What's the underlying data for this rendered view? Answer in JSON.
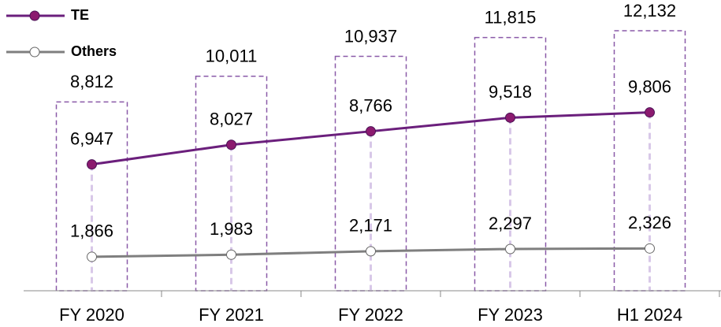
{
  "chart_data": {
    "type": "line",
    "categories": [
      "FY 2020",
      "FY 2021",
      "FY 2022",
      "FY 2023",
      "H1 2024"
    ],
    "series": [
      {
        "name": "TE",
        "color": "#6b1f7c",
        "marker_color": "#8b1a6f",
        "values": [
          6947,
          8027,
          8766,
          9518,
          9806
        ],
        "value_labels": [
          "6,947",
          "8,027",
          "8,766",
          "9,518",
          "9,806"
        ]
      },
      {
        "name": "Others",
        "color": "#7f7f7f",
        "marker_color": "#ffffff",
        "values": [
          1866,
          1983,
          2171,
          2297,
          2326
        ],
        "value_labels": [
          "1,866",
          "1,983",
          "2,171",
          "2,297",
          "2,326"
        ]
      }
    ],
    "totals": {
      "color": "#8a5aa8",
      "values": [
        8812,
        10011,
        10937,
        11815,
        12132
      ],
      "value_labels": [
        "8,812",
        "10,011",
        "10,937",
        "11,815",
        "12,132"
      ]
    },
    "legend": "top-left"
  }
}
